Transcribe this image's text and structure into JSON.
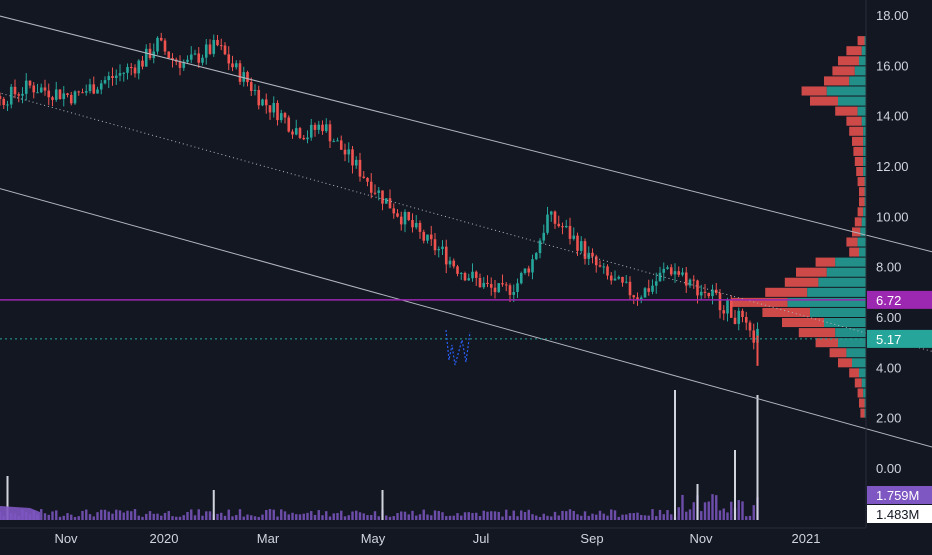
{
  "chart_data": {
    "type": "candlestick",
    "xlabels": [
      "Nov",
      "2020",
      "Mar",
      "May",
      "Jul",
      "Sep",
      "Nov",
      "2021"
    ],
    "ylabels": [
      "18.00",
      "16.00",
      "14.00",
      "12.00",
      "10.00",
      "8.00",
      "6.00",
      "4.00",
      "2.00",
      "0.00"
    ],
    "ylim": [
      -0.5,
      18.5
    ],
    "price_path": [
      [
        0,
        14.6
      ],
      [
        6,
        14.0
      ],
      [
        12,
        14.3
      ],
      [
        18,
        14.8
      ],
      [
        24,
        15.2
      ],
      [
        30,
        15.0
      ],
      [
        36,
        14.8
      ],
      [
        42,
        15.3
      ],
      [
        48,
        15.7
      ],
      [
        54,
        16.2
      ],
      [
        58,
        16.9
      ],
      [
        62,
        16.3
      ],
      [
        66,
        16.1
      ],
      [
        70,
        16.5
      ],
      [
        74,
        16.8
      ],
      [
        78,
        16.0
      ],
      [
        82,
        15.4
      ],
      [
        86,
        14.6
      ],
      [
        90,
        14.2
      ],
      [
        94,
        13.6
      ],
      [
        98,
        13.3
      ],
      [
        102,
        13.7
      ],
      [
        106,
        12.9
      ],
      [
        110,
        12.2
      ],
      [
        114,
        11.5
      ],
      [
        118,
        10.8
      ],
      [
        122,
        10.2
      ],
      [
        126,
        9.6
      ],
      [
        130,
        9.0
      ],
      [
        134,
        8.6
      ],
      [
        138,
        8.0
      ],
      [
        142,
        7.6
      ],
      [
        146,
        7.2
      ],
      [
        150,
        7.0
      ],
      [
        154,
        7.4
      ],
      [
        158,
        8.3
      ],
      [
        162,
        10.0
      ],
      [
        166,
        9.6
      ],
      [
        170,
        9.0
      ],
      [
        174,
        8.2
      ],
      [
        178,
        7.6
      ],
      [
        182,
        7.2
      ],
      [
        186,
        6.9
      ],
      [
        190,
        7.3
      ],
      [
        194,
        8.0
      ],
      [
        198,
        7.7
      ],
      [
        202,
        7.2
      ],
      [
        206,
        6.9
      ],
      [
        210,
        6.4
      ],
      [
        214,
        5.8
      ],
      [
        216,
        5.2
      ],
      [
        218,
        5.3
      ]
    ],
    "resistance_line": {
      "start": [
        0,
        18.6
      ],
      "end": [
        276,
        8.2
      ]
    },
    "support_line": {
      "start": [
        0,
        11.8
      ],
      "end": [
        276,
        0.4
      ]
    },
    "midline": {
      "start": [
        0,
        15.6
      ],
      "end": [
        276,
        4.2
      ]
    },
    "price_marker": {
      "label": "6.72",
      "value": 6.72,
      "color": "#9c27b0"
    },
    "last_price": {
      "label": "5.17",
      "value": 5.17,
      "color": "#26a69a"
    },
    "volume_labels": [
      {
        "label": "1.759M",
        "color": "#7e57c2"
      },
      {
        "label": "1.483M",
        "color": "#ffffff"
      }
    ],
    "volume_profile": [
      [
        17.0,
        0.06,
        0.01
      ],
      [
        16.6,
        0.14,
        0.03
      ],
      [
        16.2,
        0.2,
        0.05
      ],
      [
        15.8,
        0.24,
        0.08
      ],
      [
        15.4,
        0.3,
        0.12
      ],
      [
        15.0,
        0.46,
        0.28
      ],
      [
        14.6,
        0.4,
        0.2
      ],
      [
        14.2,
        0.22,
        0.06
      ],
      [
        13.8,
        0.14,
        0.03
      ],
      [
        13.4,
        0.12,
        0.02
      ],
      [
        13.0,
        0.1,
        0.02
      ],
      [
        12.6,
        0.09,
        0.02
      ],
      [
        12.2,
        0.08,
        0.02
      ],
      [
        11.8,
        0.07,
        0.02
      ],
      [
        11.4,
        0.06,
        0.01
      ],
      [
        11.0,
        0.05,
        0.01
      ],
      [
        10.6,
        0.05,
        0.01
      ],
      [
        10.2,
        0.06,
        0.02
      ],
      [
        9.8,
        0.08,
        0.03
      ],
      [
        9.4,
        0.1,
        0.04
      ],
      [
        9.0,
        0.14,
        0.06
      ],
      [
        8.6,
        0.12,
        0.05
      ],
      [
        8.2,
        0.36,
        0.22
      ],
      [
        7.8,
        0.5,
        0.28
      ],
      [
        7.4,
        0.58,
        0.34
      ],
      [
        7.0,
        0.72,
        0.42
      ],
      [
        6.6,
        0.96,
        0.56
      ],
      [
        6.2,
        0.74,
        0.4
      ],
      [
        5.8,
        0.6,
        0.3
      ],
      [
        5.4,
        0.48,
        0.22
      ],
      [
        5.0,
        0.36,
        0.2
      ],
      [
        4.6,
        0.26,
        0.14
      ],
      [
        4.2,
        0.2,
        0.1
      ],
      [
        3.8,
        0.12,
        0.05
      ],
      [
        3.4,
        0.08,
        0.03
      ],
      [
        3.0,
        0.06,
        0.02
      ],
      [
        2.6,
        0.05,
        0.01
      ],
      [
        2.2,
        0.04,
        0.01
      ]
    ],
    "grid": false,
    "colors": {
      "background": "#131722",
      "up": "#26a69a",
      "down": "#ef5350",
      "channel": "#b2b5be",
      "volume": "#7e57c2",
      "axis_text": "#d1d4dc"
    }
  }
}
